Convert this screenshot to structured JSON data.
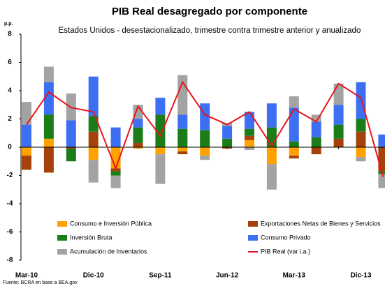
{
  "chart_data": {
    "type": "bar",
    "title": "PIB Real desagregado por componente",
    "subtitle": "Estados Unidos - desestacionalizado, trimestre contra trimestre anterior y anualizado",
    "y_label": "p.p.",
    "source": "Fuente: BCRA en base a BEA.gov",
    "stacked": true,
    "categories": [
      "Mar-10",
      null,
      null,
      "Dic-10",
      null,
      null,
      "Sep-11",
      null,
      null,
      "Jun-12",
      null,
      null,
      "Mar-13",
      null,
      null,
      "Dic-13",
      null
    ],
    "series": [
      {
        "name": "Consumo e Inversión Pública",
        "color": "#ffa200",
        "values": [
          -0.6,
          0.6,
          0,
          -0.9,
          -1.5,
          -0.1,
          -0.5,
          -0.3,
          -0.6,
          0,
          0.5,
          -1.2,
          -0.6,
          0,
          0,
          -0.7,
          0
        ]
      },
      {
        "name": "Exportaciones Netas de Bienes y Servicios",
        "color": "#a5420a",
        "values": [
          -1.0,
          -1.8,
          -0.1,
          1.1,
          -0.2,
          0.3,
          0,
          -0.2,
          0,
          -0.1,
          0.3,
          0,
          -0.2,
          -0.5,
          0.6,
          1.1,
          -1.7
        ]
      },
      {
        "name": "Inversión Bruta",
        "color": "#1a7d1a",
        "values": [
          0,
          1.7,
          -0.9,
          1.1,
          -0.3,
          1.1,
          2.3,
          1.3,
          1.2,
          0.6,
          0.5,
          1.4,
          0.4,
          0.7,
          1.0,
          0.9,
          -0.2
        ]
      },
      {
        "name": "Consumo Privado",
        "color": "#3d6ff2",
        "values": [
          1.6,
          2.3,
          1.9,
          2.8,
          1.4,
          0.6,
          1.2,
          1.0,
          1.9,
          0.9,
          1.2,
          1.7,
          2.4,
          1.1,
          1.4,
          2.6,
          0.9
        ]
      },
      {
        "name": "Acumulación de Inventarios",
        "color": "#a3a3a3",
        "values": [
          1.6,
          1.1,
          1.9,
          -1.6,
          -0.9,
          1.0,
          -2.1,
          2.8,
          -0.3,
          0.2,
          -0.2,
          -1.8,
          0.8,
          0.5,
          1.5,
          -0.3,
          -1.0
        ]
      },
      {
        "name": "PIB Real (var i.a.)",
        "color": "#e8141c",
        "type": "line",
        "values": [
          1.6,
          3.9,
          2.8,
          2.5,
          -1.5,
          2.9,
          0.8,
          4.6,
          2.3,
          1.6,
          2.5,
          0.1,
          2.7,
          1.8,
          4.5,
          3.5,
          -2.1
        ]
      }
    ],
    "ylim": [
      -8,
      8
    ],
    "yticks": [
      -8,
      -6,
      -4,
      -2,
      0,
      2,
      4,
      6,
      8
    ],
    "grid": false
  }
}
